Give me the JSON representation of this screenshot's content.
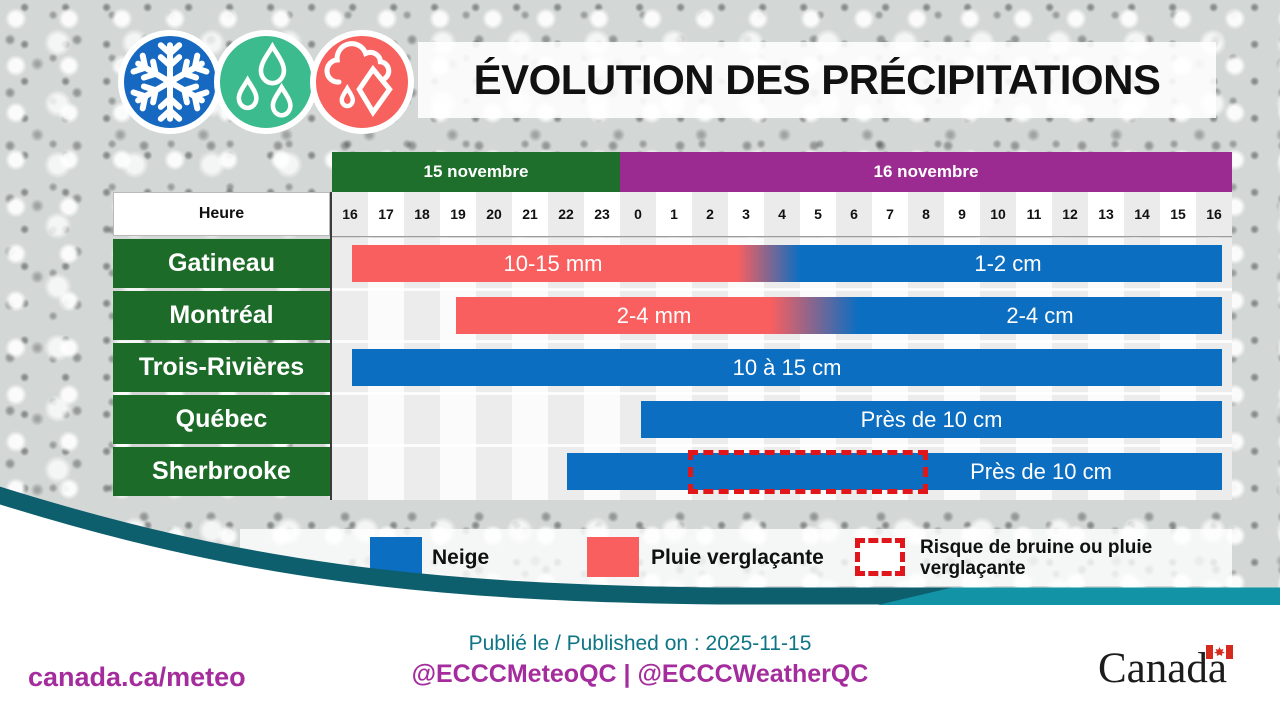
{
  "title": "ÉVOLUTION DES PRÉCIPITATIONS",
  "header_icons": [
    "snowflake-icon",
    "raindrops-icon",
    "freezing-rain-icon"
  ],
  "table": {
    "hour_header": "Heure",
    "date_headers": [
      {
        "label": "15 novembre",
        "color": "#1e6e2c",
        "hours_span": 8
      },
      {
        "label": "16 novembre",
        "color": "#9c2b91",
        "hours_span": 17
      }
    ],
    "hours": [
      "16",
      "17",
      "18",
      "19",
      "20",
      "21",
      "22",
      "23",
      "0",
      "1",
      "2",
      "3",
      "4",
      "5",
      "6",
      "7",
      "8",
      "9",
      "10",
      "11",
      "12",
      "13",
      "14",
      "15",
      "16"
    ]
  },
  "chart_data": {
    "type": "timeline-bar",
    "title": "ÉVOLUTION DES PRÉCIPITATIONS",
    "xlabel": "Heure",
    "x_start": "15 novembre 16:00",
    "x_end": "16 novembre 16:00",
    "rows": [
      {
        "city": "Gatineau",
        "segments": [
          {
            "type": "pluie_verglacante",
            "label": "10-15 mm",
            "from": "15 nov 16:30",
            "to": "16 nov 03:30"
          },
          {
            "type": "neige",
            "label": "1-2 cm",
            "from": "16 nov 04:30",
            "to": "16 nov 16:00"
          }
        ],
        "transition": "gradient pluie→neige 03:30-04:30"
      },
      {
        "city": "Montréal",
        "segments": [
          {
            "type": "pluie_verglacante",
            "label": "2-4 mm",
            "from": "15 nov 19:30",
            "to": "16 nov 04:30"
          },
          {
            "type": "neige",
            "label": "2-4 cm",
            "from": "16 nov 06:00",
            "to": "16 nov 16:00"
          }
        ],
        "transition": "gradient pluie→neige 04:30-06:00"
      },
      {
        "city": "Trois-Rivières",
        "segments": [
          {
            "type": "neige",
            "label": "10 à 15 cm",
            "from": "15 nov 16:30",
            "to": "16 nov 16:00"
          }
        ]
      },
      {
        "city": "Québec",
        "segments": [
          {
            "type": "neige",
            "label": "Près de 10 cm",
            "from": "16 nov 00:30",
            "to": "16 nov 16:00"
          }
        ]
      },
      {
        "city": "Sherbrooke",
        "segments": [
          {
            "type": "neige",
            "label": "Près de 10 cm",
            "from": "15 nov 22:30",
            "to": "16 nov 16:00"
          }
        ],
        "risk_overlay": {
          "type": "risque_bruine_pluie_verglacante",
          "from": "16 nov 02:00",
          "to": "16 nov 08:30"
        }
      }
    ],
    "legend": [
      {
        "label": "Neige",
        "color": "#0c6ec1"
      },
      {
        "label": "Pluie verglaçante",
        "color": "#fa5f5f"
      },
      {
        "label": "Risque de bruine ou pluie verglaçante",
        "style": "dashed-red-outline",
        "color": "#e0161b",
        "line1": "Risque de bruine ou pluie",
        "line2": "verglaçante"
      }
    ],
    "grid": "hourly columns, alternating shading"
  },
  "colors": {
    "bar_snow_blue": "#0c6ec1",
    "bar_freezing_rain_salmon": "#fa5f5f",
    "risk_dashed_red": "#e0161b",
    "header_green": "#1e6e2c",
    "header_purple": "#9c2b91",
    "city_label_green": "#1d6b29",
    "wave_teal_dark": "#0d5f6d",
    "wave_teal_light": "#1293a6",
    "footer_teal_text": "#0e7586",
    "footer_magenta_text": "#a42c9c"
  },
  "footer": {
    "published": "Publié le / Published on : 2025-11-15",
    "handles": "@ECCCMeteoQC | @ECCCWeatherQC",
    "website": "canada.ca/meteo",
    "wordmark": "Canada"
  }
}
